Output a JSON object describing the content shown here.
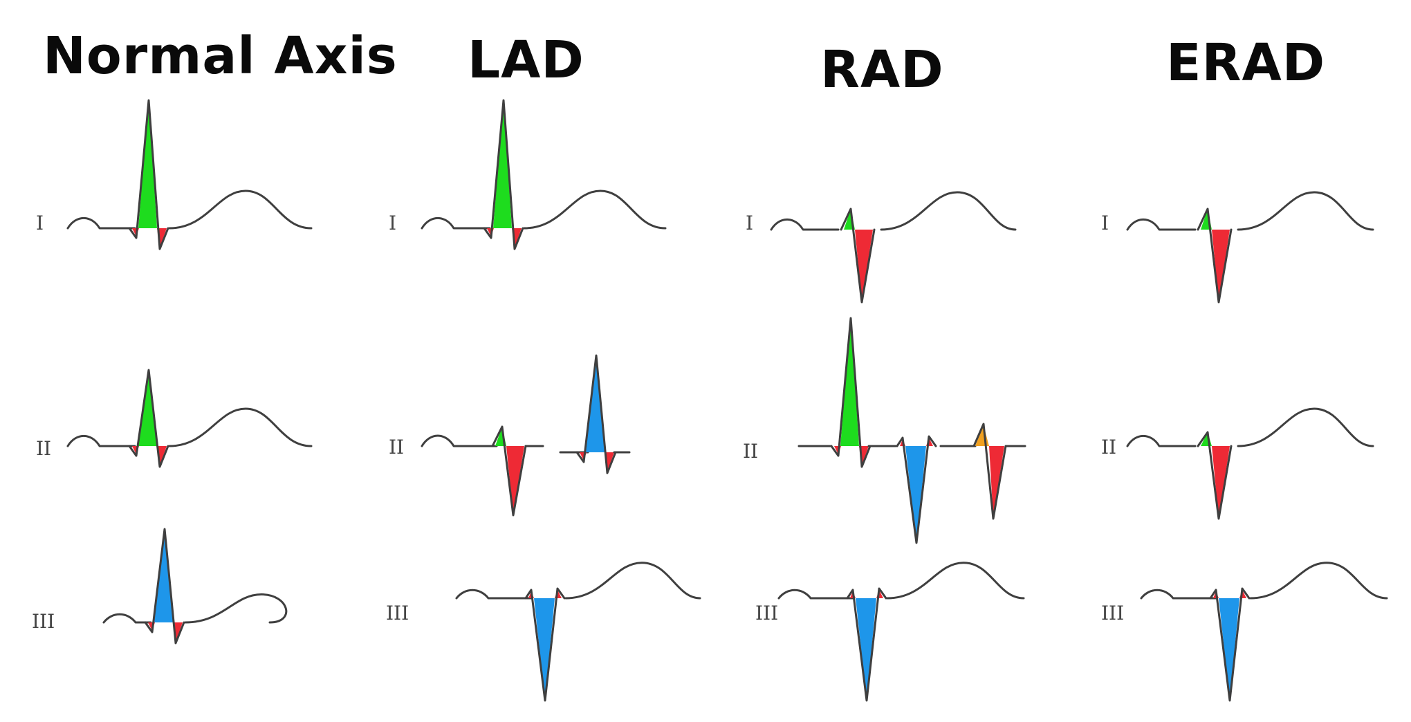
{
  "colors": {
    "trace": "#3f3f3f",
    "positive_deflection": "#1edc1e",
    "negative_deflection": "#ee2a35",
    "opposite_deflection": "#1e96ea",
    "equiphasic_small": "#f0a020",
    "background": "#ffffff"
  },
  "columns": [
    {
      "title": "Normal Axis",
      "leads": [
        {
          "label": "I",
          "pattern": "tall-positive"
        },
        {
          "label": "II",
          "pattern": "positive"
        },
        {
          "label": "III",
          "pattern": "positive-blue"
        }
      ]
    },
    {
      "title": "LAD",
      "leads": [
        {
          "label": "I",
          "pattern": "tall-positive"
        },
        {
          "label": "II",
          "pattern": "negative-and-positive-blue"
        },
        {
          "label": "III",
          "pattern": "negative-blue"
        }
      ]
    },
    {
      "title": "RAD",
      "leads": [
        {
          "label": "I",
          "pattern": "negative"
        },
        {
          "label": "II",
          "pattern": "tall-positive-and-negatives"
        },
        {
          "label": "III",
          "pattern": "negative-blue"
        }
      ]
    },
    {
      "title": "ERAD",
      "leads": [
        {
          "label": "I",
          "pattern": "negative"
        },
        {
          "label": "II",
          "pattern": "negative"
        },
        {
          "label": "III",
          "pattern": "negative-blue"
        }
      ]
    }
  ]
}
